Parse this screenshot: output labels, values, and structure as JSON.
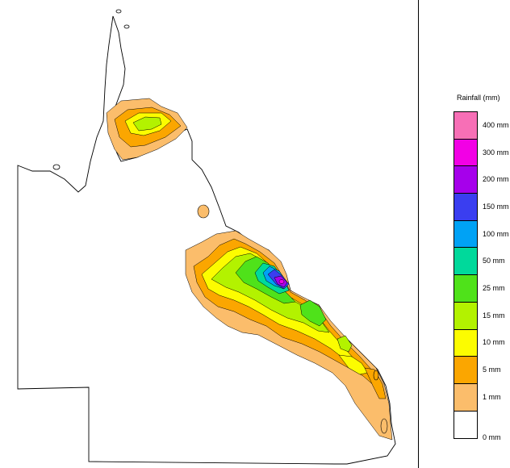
{
  "legend": {
    "title": "Rainfall (mm)",
    "labels": [
      "0 mm",
      "1 mm",
      "5 mm",
      "10 mm",
      "15 mm",
      "25 mm",
      "50 mm",
      "100 mm",
      "150 mm",
      "200 mm",
      "300 mm",
      "400 mm"
    ],
    "colors": [
      "#ffffff",
      "#fbbd6b",
      "#fba600",
      "#fcfc00",
      "#b3f200",
      "#4fe21a",
      "#00d99b",
      "#00a2f5",
      "#3a3ef0",
      "#a600eb",
      "#f200e5",
      "#f76fb6"
    ]
  }
}
